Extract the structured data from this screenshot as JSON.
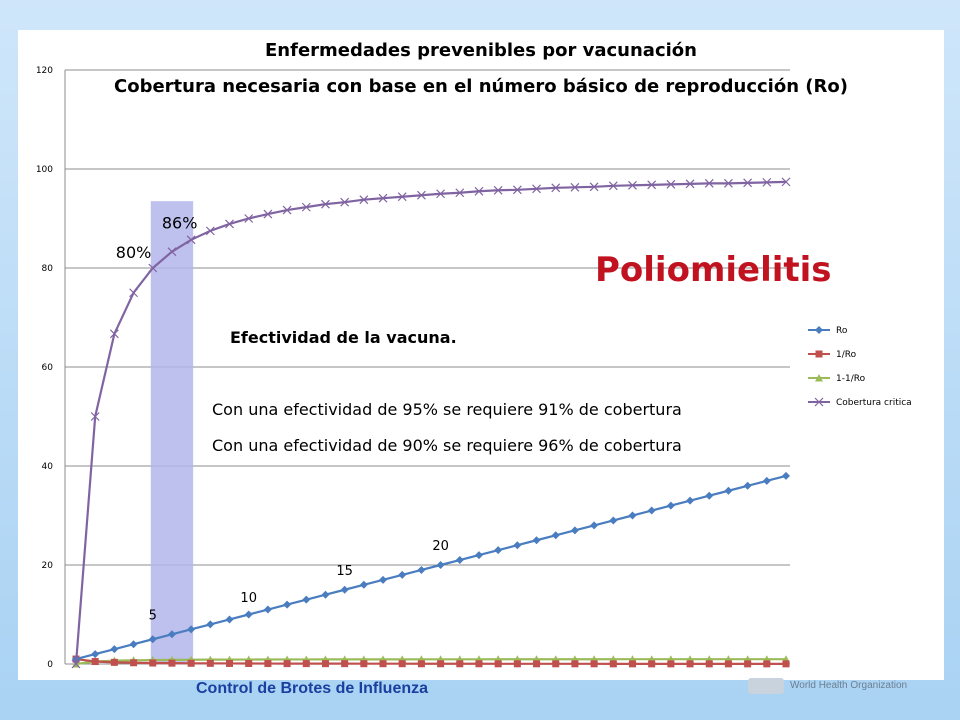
{
  "chart_data": {
    "type": "line",
    "title": "Enfermedades prevenibles por vacunación",
    "subtitle": "Cobertura necesaria con base en el número básico de reproducción (Ro)",
    "x": [
      1,
      2,
      3,
      4,
      5,
      6,
      7,
      8,
      9,
      10,
      11,
      12,
      13,
      14,
      15,
      16,
      17,
      18,
      19,
      20,
      21,
      22,
      23,
      24,
      25,
      26,
      27,
      28,
      29,
      30,
      31,
      32,
      33,
      34,
      35,
      36,
      37,
      38
    ],
    "ylim": [
      0,
      120
    ],
    "yticks": [
      "0",
      "20",
      "40",
      "60",
      "80",
      "100",
      "120"
    ],
    "grid": "horizontal",
    "legend_position": "right",
    "series": [
      {
        "name": "Ro",
        "color": "#4a7dc0",
        "marker": "diamond",
        "values": [
          1,
          2,
          3,
          4,
          5,
          6,
          7,
          8,
          9,
          10,
          11,
          12,
          13,
          14,
          15,
          16,
          17,
          18,
          19,
          20,
          21,
          22,
          23,
          24,
          25,
          26,
          27,
          28,
          29,
          30,
          31,
          32,
          33,
          34,
          35,
          36,
          37,
          38
        ]
      },
      {
        "name": "1/Ro",
        "color": "#c0504d",
        "marker": "square",
        "values": [
          1,
          0.5,
          0.33,
          0.25,
          0.2,
          0.17,
          0.14,
          0.13,
          0.11,
          0.1,
          0.09,
          0.08,
          0.08,
          0.07,
          0.07,
          0.06,
          0.06,
          0.06,
          0.05,
          0.05,
          0.05,
          0.05,
          0.04,
          0.04,
          0.04,
          0.04,
          0.04,
          0.04,
          0.03,
          0.03,
          0.03,
          0.03,
          0.03,
          0.03,
          0.03,
          0.03,
          0.03,
          0.03
        ]
      },
      {
        "name": "1-1/Ro",
        "color": "#9bbb59",
        "marker": "triangle",
        "values": [
          0,
          0.5,
          0.67,
          0.75,
          0.8,
          0.83,
          0.86,
          0.88,
          0.89,
          0.9,
          0.91,
          0.92,
          0.92,
          0.93,
          0.93,
          0.94,
          0.94,
          0.94,
          0.95,
          0.95,
          0.95,
          0.95,
          0.96,
          0.96,
          0.96,
          0.96,
          0.96,
          0.96,
          0.97,
          0.97,
          0.97,
          0.97,
          0.97,
          0.97,
          0.97,
          0.97,
          0.97,
          0.97
        ]
      },
      {
        "name": "Cobertura critica",
        "color": "#8064a2",
        "marker": "x",
        "values": [
          0,
          50,
          66.7,
          75,
          80,
          83.3,
          85.7,
          87.5,
          88.9,
          90,
          90.9,
          91.7,
          92.3,
          92.9,
          93.3,
          93.8,
          94.1,
          94.4,
          94.7,
          95,
          95.2,
          95.5,
          95.7,
          95.8,
          96,
          96.2,
          96.3,
          96.4,
          96.6,
          96.7,
          96.8,
          96.9,
          97,
          97.1,
          97.1,
          97.2,
          97.3,
          97.4
        ]
      }
    ],
    "highlight_band": {
      "x_from": 5,
      "x_to": 7,
      "y_to": 93.5,
      "color": "#b3b5ea"
    },
    "annotations": [
      {
        "text": "80%",
        "x": 4,
        "y": 82
      },
      {
        "text": "86%",
        "x": 6.4,
        "y": 88
      },
      {
        "text": "5",
        "x": 5,
        "y": 9
      },
      {
        "text": "10",
        "x": 10,
        "y": 12.5
      },
      {
        "text": "15",
        "x": 15,
        "y": 18
      },
      {
        "text": "20",
        "x": 20,
        "y": 23
      }
    ]
  },
  "slide": {
    "title1": "Enfermedades prevenibles por vacunación",
    "title2": "Cobertura necesaria con base en el número básico de reproducción (Ro)",
    "disease": "Poliomielitis",
    "subhead": "Efectividad de  la vacuna.",
    "line1": "Con una efectividad de 95%  se requiere 91% de cobertura",
    "line2": "Con una efectividad de 90%  se requiere 96% de cobertura",
    "footer": "Control de Brotes de Influenza",
    "org_name": "World Health Organization"
  }
}
